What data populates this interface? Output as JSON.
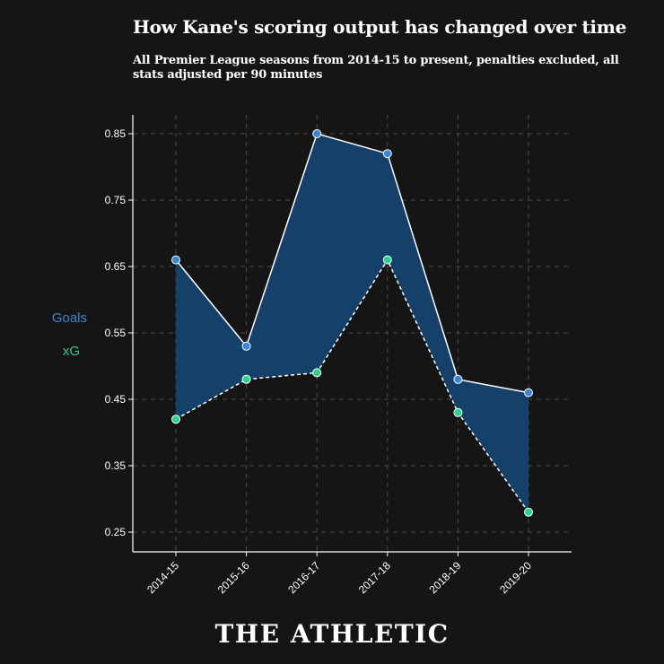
{
  "title": "How Kane's scoring output has changed over time",
  "subtitle": "All Premier League seasons from 2014-15 to present, penalties excluded, all stats adjusted per 90 minutes",
  "brand": "THE ATHLETIC",
  "colors": {
    "background": "#151515",
    "goals": "#3a86d4",
    "xg": "#2fd089",
    "fill": "#15406a"
  },
  "chart_data": {
    "type": "line",
    "categories": [
      "2014-15",
      "2015-16",
      "2016-17",
      "2017-18",
      "2018-19",
      "2019-20"
    ],
    "series": [
      {
        "name": "Goals",
        "values": [
          0.66,
          0.53,
          0.85,
          0.82,
          0.48,
          0.46
        ],
        "line_style": "solid"
      },
      {
        "name": "xG",
        "values": [
          0.42,
          0.48,
          0.49,
          0.66,
          0.43,
          0.28
        ],
        "line_style": "dashed"
      }
    ],
    "yticks": [
      0.25,
      0.35,
      0.45,
      0.55,
      0.65,
      0.75,
      0.85
    ],
    "ylim": [
      0.22,
      0.88
    ],
    "grid": true,
    "legend_placement": "left",
    "xlabel": "",
    "ylabel": ""
  }
}
